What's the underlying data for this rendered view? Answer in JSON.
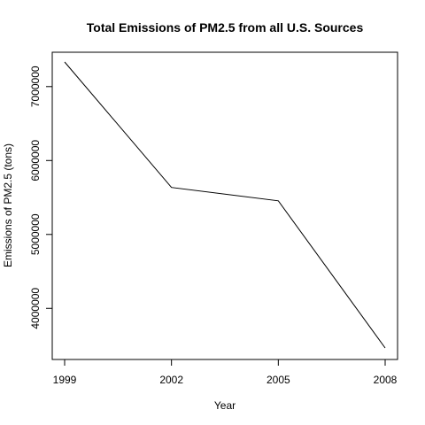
{
  "chart_data": {
    "type": "line",
    "title": "Total Emissions of PM2.5 from all U.S. Sources",
    "xlabel": "Year",
    "ylabel": "Emissions of PM2.5 (tons)",
    "x": [
      1999,
      2002,
      2005,
      2008
    ],
    "series": [
      {
        "values": [
          7332967,
          5635780,
          5454703,
          3464206
        ]
      }
    ],
    "xticks": [
      "1999",
      "2002",
      "2005",
      "2008"
    ],
    "yticks": [
      "4000000",
      "5000000",
      "6000000",
      "7000000"
    ],
    "xlim": [
      1999,
      2008
    ],
    "ylim": [
      3464206,
      7332967
    ],
    "grid": false,
    "line_color": "#000000"
  }
}
